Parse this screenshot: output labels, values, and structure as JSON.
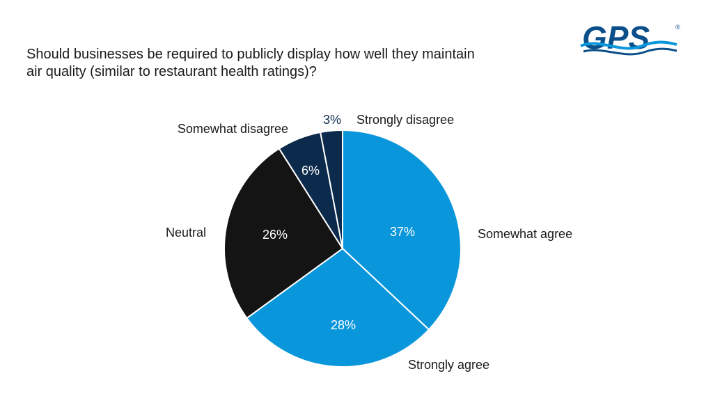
{
  "question": "Should businesses be required to publicly display how well they maintain air quality (similar to restaurant health ratings)?",
  "logo": {
    "text": "GPS",
    "registered": "®"
  },
  "colors": {
    "strongly_agree": "#0a96db",
    "somewhat_agree": "#0a96db",
    "neutral": "#141414",
    "somewhat_disagree": "#0c2a4b",
    "strongly_disagree": "#0c2a4b",
    "logo_blue": "#0b4f8a",
    "logo_wave": "#0a96db"
  },
  "chart_data": {
    "type": "pie",
    "title": "",
    "categories": [
      "Somewhat agree",
      "Strongly agree",
      "Neutral",
      "Somewhat disagree",
      "Strongly disagree"
    ],
    "values": [
      37,
      28,
      26,
      6,
      3
    ],
    "value_labels": [
      "37%",
      "28%",
      "26%",
      "6%",
      "3%"
    ],
    "start": "12 o'clock",
    "direction": "clockwise"
  }
}
